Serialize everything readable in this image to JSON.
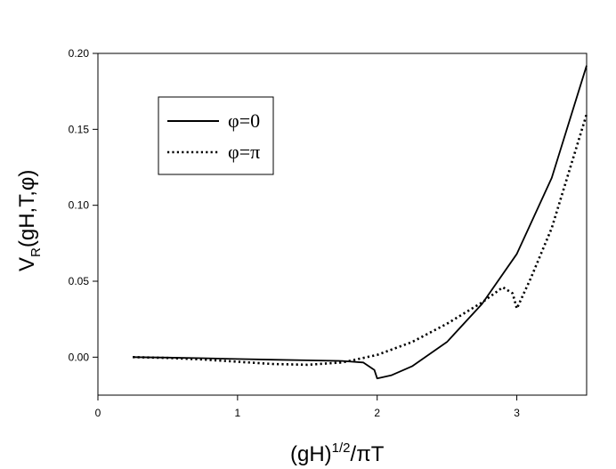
{
  "chart_data": {
    "type": "line",
    "title": "",
    "xlabel_parts": {
      "base": "(gH)",
      "sup": "1/2",
      "rest": "/πT"
    },
    "ylabel_parts": {
      "base": "V",
      "sub": "R",
      "rest": "(gH,T,φ)"
    },
    "xlim": [
      0,
      3.5
    ],
    "ylim": [
      -0.025,
      0.2
    ],
    "xticks": [
      0,
      1,
      2,
      3
    ],
    "yticks": [
      0.0,
      0.05,
      0.1,
      0.15,
      0.2
    ],
    "ytick_labels": [
      "0.00",
      "0.05",
      "0.10",
      "0.15",
      "0.20"
    ],
    "grid": false,
    "legend_position": "upper-left",
    "series": [
      {
        "name": "φ=0",
        "style": "solid",
        "x": [
          0.25,
          0.5,
          0.75,
          1.0,
          1.25,
          1.5,
          1.75,
          1.9,
          1.98,
          2.0,
          2.1,
          2.25,
          2.5,
          2.75,
          3.0,
          3.25,
          3.5
        ],
        "y": [
          0.0,
          -0.0003,
          -0.0007,
          -0.0012,
          -0.0017,
          -0.0021,
          -0.0025,
          -0.0035,
          -0.0085,
          -0.014,
          -0.012,
          -0.006,
          0.01,
          0.035,
          0.068,
          0.118,
          0.192
        ]
      },
      {
        "name": "φ=π",
        "style": "dotted",
        "x": [
          0.25,
          0.5,
          0.75,
          1.0,
          1.25,
          1.5,
          1.75,
          2.0,
          2.25,
          2.5,
          2.75,
          2.9,
          2.97,
          3.0,
          3.1,
          3.25,
          3.5
        ],
        "y": [
          0.0,
          -0.0005,
          -0.0015,
          -0.003,
          -0.0045,
          -0.005,
          -0.0035,
          0.0015,
          0.01,
          0.022,
          0.036,
          0.046,
          0.042,
          0.032,
          0.052,
          0.085,
          0.16
        ]
      }
    ]
  }
}
